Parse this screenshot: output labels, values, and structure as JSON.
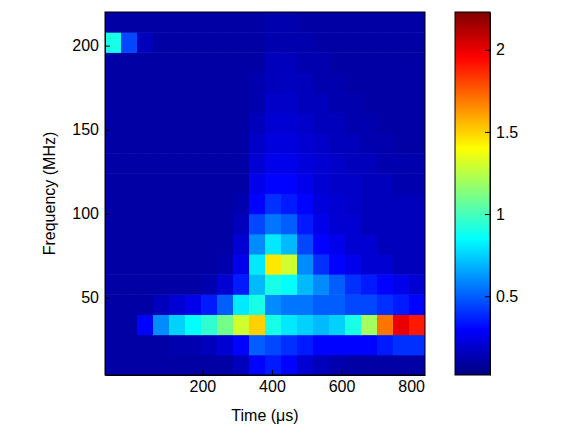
{
  "chart_data": {
    "type": "heatmap",
    "x_label": "Time (μs)",
    "y_label": "Frequency (MHz)",
    "x": [
      -57,
      -11,
      35,
      81,
      127,
      173,
      219,
      265,
      311,
      357,
      403,
      449,
      495,
      541,
      587,
      633,
      679,
      725,
      771,
      817
    ],
    "y": [
      10,
      22,
      34,
      46,
      58,
      70,
      82,
      94,
      106,
      118,
      130,
      142,
      154,
      166,
      178,
      190,
      202,
      214
    ],
    "values": [
      [
        0.1,
        0.1,
        0.1,
        0.1,
        0.1,
        0.1,
        0.1,
        0.1,
        0.15,
        0.3,
        0.35,
        0.3,
        0.2,
        0.15,
        0.12,
        0.1,
        0.1,
        0.1,
        0.1,
        0.1
      ],
      [
        0.1,
        0.1,
        0.1,
        0.1,
        0.12,
        0.12,
        0.15,
        0.2,
        0.3,
        0.5,
        0.45,
        0.4,
        0.35,
        0.3,
        0.3,
        0.3,
        0.3,
        0.35,
        0.4,
        0.4
      ],
      [
        0.1,
        0.1,
        0.3,
        0.6,
        0.75,
        0.85,
        0.95,
        1.1,
        1.3,
        1.5,
        0.9,
        0.8,
        0.75,
        0.7,
        0.75,
        0.9,
        1.2,
        1.7,
        2.0,
        1.9
      ],
      [
        0.1,
        0.1,
        0.1,
        0.15,
        0.2,
        0.25,
        0.35,
        0.5,
        0.8,
        0.9,
        0.6,
        0.55,
        0.55,
        0.5,
        0.5,
        0.45,
        0.45,
        0.4,
        0.35,
        0.3
      ],
      [
        0.1,
        0.1,
        0.1,
        0.1,
        0.1,
        0.1,
        0.12,
        0.2,
        0.35,
        0.7,
        0.9,
        0.85,
        0.7,
        0.6,
        0.5,
        0.4,
        0.35,
        0.3,
        0.25,
        0.2
      ],
      [
        0.1,
        0.1,
        0.1,
        0.1,
        0.1,
        0.1,
        0.1,
        0.12,
        0.25,
        0.8,
        1.45,
        1.3,
        0.6,
        0.4,
        0.3,
        0.25,
        0.2,
        0.2,
        0.15,
        0.15
      ],
      [
        0.1,
        0.1,
        0.1,
        0.1,
        0.1,
        0.1,
        0.1,
        0.1,
        0.2,
        0.6,
        0.8,
        0.7,
        0.45,
        0.3,
        0.25,
        0.2,
        0.2,
        0.15,
        0.15,
        0.15
      ],
      [
        0.1,
        0.1,
        0.1,
        0.1,
        0.1,
        0.1,
        0.1,
        0.1,
        0.15,
        0.45,
        0.55,
        0.5,
        0.35,
        0.25,
        0.2,
        0.2,
        0.15,
        0.15,
        0.15,
        0.15
      ],
      [
        0.1,
        0.1,
        0.1,
        0.1,
        0.1,
        0.1,
        0.1,
        0.1,
        0.12,
        0.3,
        0.4,
        0.35,
        0.3,
        0.22,
        0.2,
        0.18,
        0.15,
        0.15,
        0.15,
        0.15
      ],
      [
        0.1,
        0.1,
        0.1,
        0.1,
        0.1,
        0.1,
        0.1,
        0.1,
        0.1,
        0.25,
        0.3,
        0.3,
        0.25,
        0.2,
        0.18,
        0.18,
        0.15,
        0.15,
        0.12,
        0.12
      ],
      [
        0.1,
        0.1,
        0.1,
        0.1,
        0.1,
        0.1,
        0.1,
        0.1,
        0.1,
        0.2,
        0.25,
        0.25,
        0.22,
        0.2,
        0.18,
        0.15,
        0.15,
        0.12,
        0.12,
        0.12
      ],
      [
        0.1,
        0.1,
        0.1,
        0.1,
        0.1,
        0.1,
        0.1,
        0.1,
        0.1,
        0.18,
        0.22,
        0.22,
        0.2,
        0.18,
        0.15,
        0.15,
        0.12,
        0.12,
        0.1,
        0.1
      ],
      [
        0.1,
        0.1,
        0.1,
        0.1,
        0.1,
        0.1,
        0.1,
        0.1,
        0.1,
        0.15,
        0.2,
        0.2,
        0.18,
        0.15,
        0.15,
        0.12,
        0.12,
        0.1,
        0.1,
        0.1
      ],
      [
        0.1,
        0.1,
        0.1,
        0.1,
        0.1,
        0.1,
        0.1,
        0.1,
        0.1,
        0.12,
        0.18,
        0.18,
        0.15,
        0.15,
        0.12,
        0.12,
        0.1,
        0.1,
        0.1,
        0.1
      ],
      [
        0.1,
        0.1,
        0.1,
        0.1,
        0.1,
        0.1,
        0.1,
        0.1,
        0.1,
        0.12,
        0.15,
        0.16,
        0.15,
        0.12,
        0.12,
        0.1,
        0.1,
        0.1,
        0.1,
        0.1
      ],
      [
        0.1,
        0.1,
        0.1,
        0.1,
        0.1,
        0.1,
        0.1,
        0.1,
        0.1,
        0.1,
        0.15,
        0.15,
        0.12,
        0.12,
        0.1,
        0.1,
        0.1,
        0.1,
        0.1,
        0.1
      ],
      [
        0.9,
        0.45,
        0.15,
        0.1,
        0.1,
        0.1,
        0.1,
        0.1,
        0.1,
        0.1,
        0.12,
        0.12,
        0.12,
        0.1,
        0.1,
        0.1,
        0.1,
        0.1,
        0.1,
        0.1
      ],
      [
        0.1,
        0.1,
        0.1,
        0.1,
        0.1,
        0.1,
        0.1,
        0.1,
        0.1,
        0.1,
        0.12,
        0.12,
        0.1,
        0.1,
        0.1,
        0.1,
        0.1,
        0.1,
        0.1,
        0.1
      ]
    ],
    "xlim": [
      -80,
      840
    ],
    "ylim": [
      4,
      220
    ],
    "xticks": [
      200,
      400,
      600,
      800
    ],
    "yticks": [
      50,
      100,
      150,
      200
    ],
    "colorbar": {
      "range": [
        0.02,
        2.23
      ],
      "ticks": [
        0.5,
        1,
        1.5,
        2
      ]
    }
  }
}
